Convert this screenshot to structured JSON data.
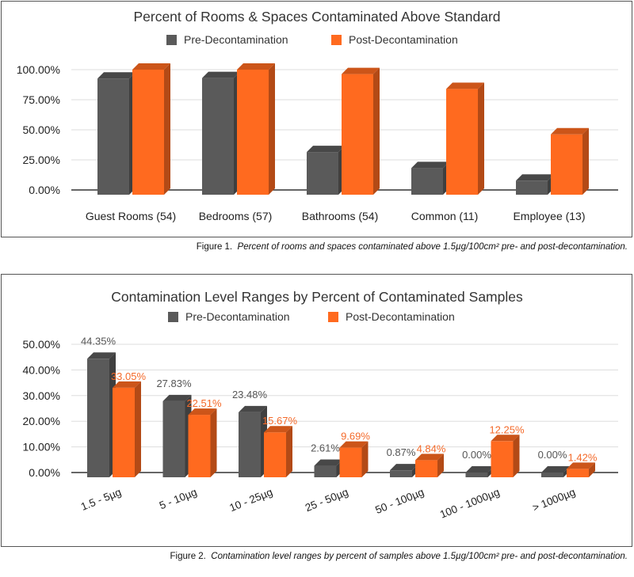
{
  "chart_data": [
    {
      "type": "bar",
      "title": "Percent of Rooms & Spaces Contaminated Above Standard",
      "categories": [
        "Guest Rooms (54)",
        "Bedrooms (57)",
        "Bathrooms (54)",
        "Common (11)",
        "Employee (13)"
      ],
      "series": [
        {
          "name": "Pre-Decontamination",
          "values": [
            92.6,
            93.0,
            31.5,
            18.2,
            7.7
          ]
        },
        {
          "name": "Post-Decontamination",
          "values": [
            100,
            100,
            96.3,
            84.0,
            46.2
          ]
        }
      ],
      "yticks": [
        "0.00%",
        "25.00%",
        "50.00%",
        "75.00%",
        "100.00%"
      ],
      "ylim": [
        0,
        100
      ],
      "grid": true,
      "legend": "top",
      "colors": [
        "#5a5a5a",
        "#ff6a1f"
      ]
    },
    {
      "type": "bar",
      "title": "Contamination Level Ranges by Percent of Contaminated Samples",
      "categories": [
        "1.5 - 5µg",
        "5 - 10µg",
        "10 - 25µg",
        "25 - 50µg",
        "50 - 100µg",
        "100 - 1000µg",
        "> 1000µg"
      ],
      "series": [
        {
          "name": "Pre-Decontamination",
          "values": [
            44.35,
            27.83,
            23.48,
            2.61,
            0.87,
            0.0,
            0.0
          ],
          "labels": [
            "44.35%",
            "27.83%",
            "23.48%",
            "2.61%",
            "0.87%",
            "0.00%",
            "0.00%"
          ]
        },
        {
          "name": "Post-Decontamination",
          "values": [
            33.05,
            22.51,
            15.67,
            9.69,
            4.84,
            12.25,
            1.42
          ],
          "labels": [
            "33.05%",
            "22.51%",
            "15.67%",
            "9.69%",
            "4.84%",
            "12.25%",
            "1.42%"
          ]
        }
      ],
      "yticks": [
        "0.00%",
        "10.00%",
        "20.00%",
        "30.00%",
        "40.00%",
        "50.00%"
      ],
      "ylim": [
        0,
        50
      ],
      "grid": true,
      "legend": "top",
      "colors": [
        "#5a5a5a",
        "#ff6a1f"
      ]
    }
  ],
  "captions": [
    {
      "prefix": "Figure 1.",
      "text": "Percent of rooms and spaces contaminated above 1.5µg/100cm² pre- and post-decontamination."
    },
    {
      "prefix": "Figure 2.",
      "text": "Contamination level ranges by percent of samples above 1.5µg/100cm² pre- and post-decontamination."
    }
  ]
}
